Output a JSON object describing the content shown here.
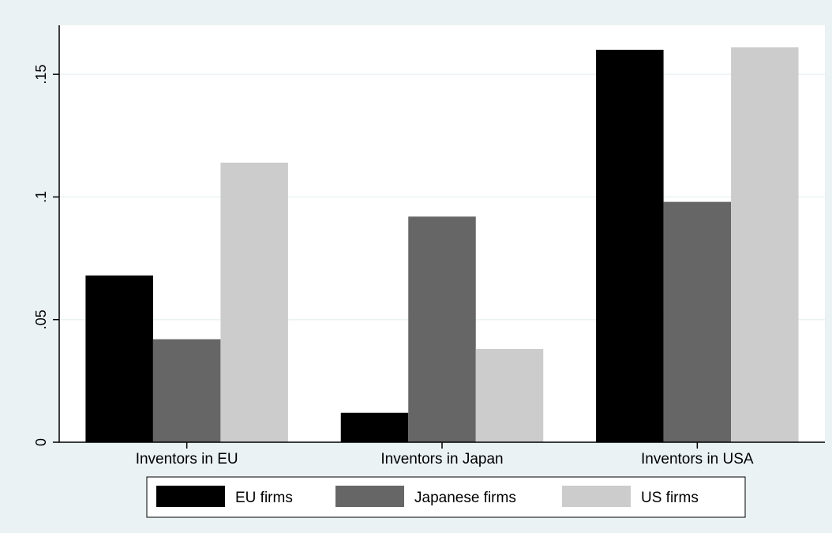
{
  "chart_data": {
    "type": "bar",
    "categories": [
      "Inventors in EU",
      "Inventors in Japan",
      "Inventors in USA"
    ],
    "series": [
      {
        "name": "EU firms",
        "color": "#000000",
        "values": [
          0.068,
          0.012,
          0.16
        ]
      },
      {
        "name": "Japanese firms",
        "color": "#666666",
        "values": [
          0.042,
          0.092,
          0.098
        ]
      },
      {
        "name": "US firms",
        "color": "#cccccc",
        "values": [
          0.114,
          0.038,
          0.161
        ]
      }
    ],
    "ylim": [
      0,
      0.17
    ],
    "yticks": [
      0,
      0.05,
      0.1,
      0.15
    ],
    "ytick_labels": [
      "0",
      ".05",
      ".1",
      ".15"
    ],
    "grid": true,
    "legend_position": "bottom",
    "title": "",
    "xlabel": "",
    "ylabel": "",
    "colors": {
      "outer_background": "#eaf2f3",
      "plot_background": "#ffffff",
      "gridline": "#eaf2f3"
    }
  }
}
